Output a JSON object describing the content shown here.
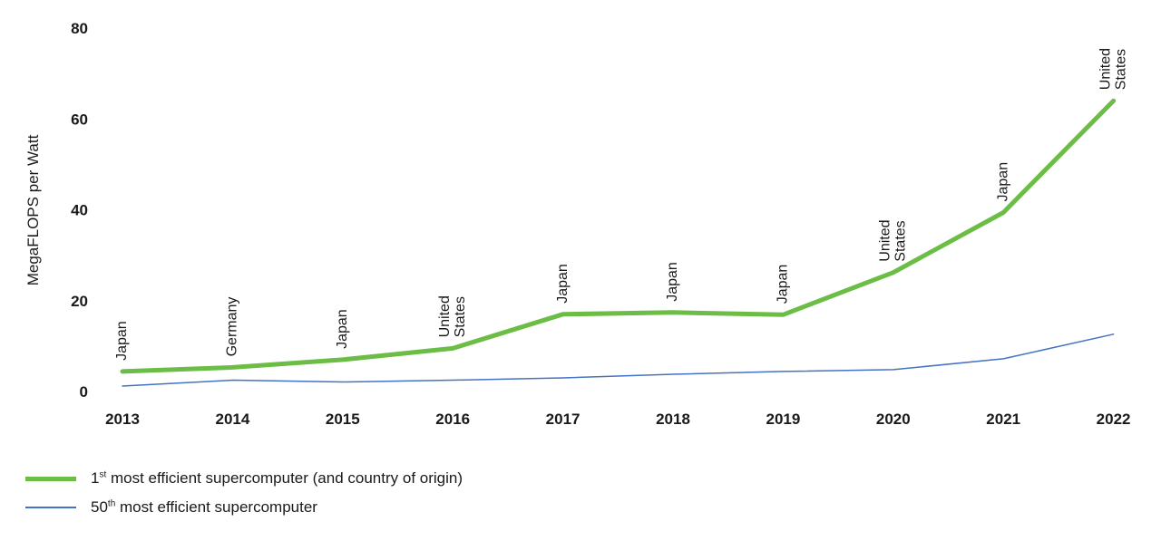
{
  "chart_data": {
    "type": "line",
    "x": [
      "2013",
      "2014",
      "2015",
      "2016",
      "2017",
      "2018",
      "2019",
      "2020",
      "2021",
      "2022"
    ],
    "ylabel": "MegaFLOPS per Watt",
    "ylim": [
      0,
      80
    ],
    "yticks": [
      0,
      20,
      40,
      60,
      80
    ],
    "grid": false,
    "legend_position": "bottom-left",
    "series": [
      {
        "name": "1st most efficient supercomputer (and country of origin)",
        "color": "#6cbd45",
        "values": [
          4.4,
          5.3,
          7.0,
          9.5,
          17.0,
          17.4,
          16.9,
          26.2,
          39.4,
          64.0
        ],
        "point_labels": [
          [
            "Japan"
          ],
          [
            "Germany"
          ],
          [
            "Japan"
          ],
          [
            "United",
            "States"
          ],
          [
            "Japan"
          ],
          [
            "Japan"
          ],
          [
            "Japan"
          ],
          [
            "United",
            "States"
          ],
          [
            "Japan"
          ],
          [
            "United",
            "States"
          ]
        ]
      },
      {
        "name": "50th most efficient supercomputer",
        "color": "#4472c4",
        "values": [
          1.2,
          2.5,
          2.1,
          2.5,
          3.0,
          3.8,
          4.4,
          4.8,
          7.2,
          12.6
        ]
      }
    ]
  },
  "legend": {
    "item1_ordinal": "1",
    "item1_sup": "st",
    "item1_text": " most efficient supercomputer (and country of origin)",
    "item2_ordinal": "50",
    "item2_sup": "th",
    "item2_text": " most efficient supercomputer"
  }
}
